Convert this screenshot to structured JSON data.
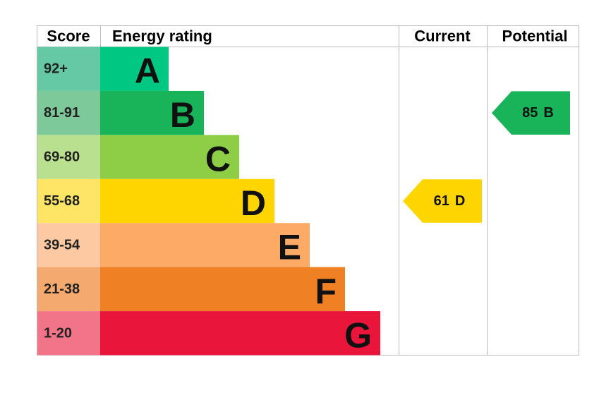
{
  "header": {
    "score": "Score",
    "energy_rating": "Energy rating",
    "current": "Current",
    "potential": "Potential"
  },
  "bands": [
    {
      "range": "92+",
      "rating": "A",
      "color": "#00c781",
      "score_color": "#64c9a4"
    },
    {
      "range": "81-91",
      "rating": "B",
      "color": "#19b459",
      "score_color": "#7dc99a"
    },
    {
      "range": "69-80",
      "rating": "C",
      "color": "#8dce46",
      "score_color": "#b9e08f"
    },
    {
      "range": "55-68",
      "rating": "D",
      "color": "#ffd500",
      "score_color": "#ffe566"
    },
    {
      "range": "39-54",
      "rating": "E",
      "color": "#fcaa65",
      "score_color": "#fdc9a2"
    },
    {
      "range": "21-38",
      "rating": "F",
      "color": "#ef8023",
      "score_color": "#f4a96e"
    },
    {
      "range": "1-20",
      "rating": "G",
      "color": "#e9153b",
      "score_color": "#f27489"
    }
  ],
  "current": {
    "score": 61,
    "rating": "D"
  },
  "potential": {
    "score": 85,
    "rating": "B"
  }
}
